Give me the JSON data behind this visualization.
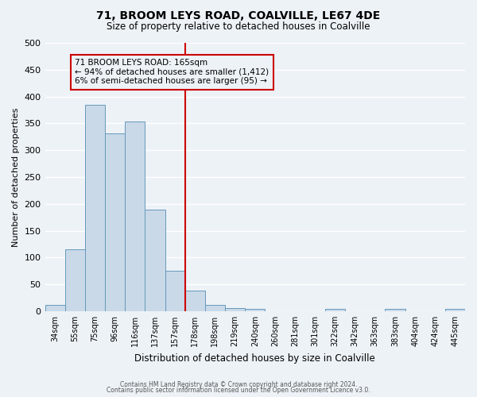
{
  "title": "71, BROOM LEYS ROAD, COALVILLE, LE67 4DE",
  "subtitle": "Size of property relative to detached houses in Coalville",
  "xlabel": "Distribution of detached houses by size in Coalville",
  "ylabel": "Number of detached properties",
  "bin_labels": [
    "34sqm",
    "55sqm",
    "75sqm",
    "96sqm",
    "116sqm",
    "137sqm",
    "157sqm",
    "178sqm",
    "198sqm",
    "219sqm",
    "240sqm",
    "260sqm",
    "281sqm",
    "301sqm",
    "322sqm",
    "342sqm",
    "363sqm",
    "383sqm",
    "404sqm",
    "424sqm",
    "445sqm"
  ],
  "bar_heights": [
    12,
    115,
    385,
    332,
    354,
    189,
    75,
    38,
    12,
    6,
    4,
    0,
    0,
    0,
    4,
    0,
    0,
    4,
    0,
    0,
    4
  ],
  "bar_color": "#c9d9e8",
  "bar_edge_color": "#6699bb",
  "vline_color": "#cc0000",
  "annotation_title": "71 BROOM LEYS ROAD: 165sqm",
  "annotation_line1": "← 94% of detached houses are smaller (1,412)",
  "annotation_line2": "6% of semi-detached houses are larger (95) →",
  "annotation_box_color": "#cc0000",
  "ylim": [
    0,
    500
  ],
  "yticks": [
    0,
    50,
    100,
    150,
    200,
    250,
    300,
    350,
    400,
    450,
    500
  ],
  "footer1": "Contains HM Land Registry data © Crown copyright and database right 2024.",
  "footer2": "Contains public sector information licensed under the Open Government Licence v3.0.",
  "background_color": "#edf2f7",
  "grid_color": "#ffffff"
}
